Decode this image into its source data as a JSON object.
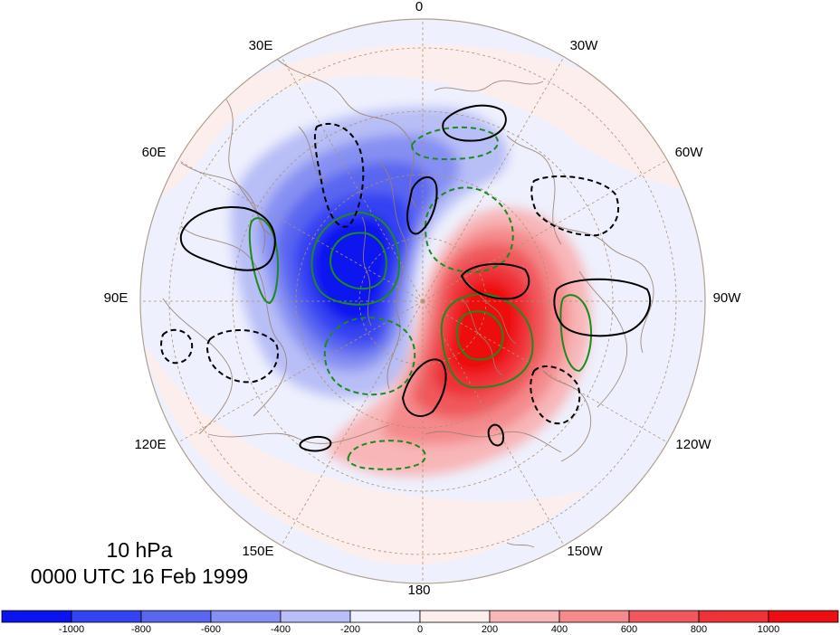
{
  "title": {
    "level": "10 hPa",
    "time": "0000 UTC 16 Feb 1999"
  },
  "longitude_labels": [
    "0",
    "30W",
    "60W",
    "90W",
    "120W",
    "150W",
    "180",
    "150E",
    "120E",
    "90E",
    "60E",
    "30E"
  ],
  "colorbar": {
    "tick_labels": [
      "-1000",
      "-800",
      "-600",
      "-400",
      "-200",
      "0",
      "200",
      "400",
      "600",
      "800",
      "1000"
    ],
    "colors": [
      "#0a14ef",
      "#3443f2",
      "#5a66f0",
      "#8690f2",
      "#b8bef6",
      "#eef0fd",
      "#fdeeee",
      "#f8b6b8",
      "#f48a8c",
      "#f0585c",
      "#ee3338",
      "#ee0d10"
    ]
  },
  "colors": {
    "projection_edge": "#b0a090",
    "coastline": "#9a8070",
    "graticule": "#b09070",
    "contour_positive": "#000000",
    "contour_negative": "#000000",
    "contour_green": "#1e8a1e"
  }
}
